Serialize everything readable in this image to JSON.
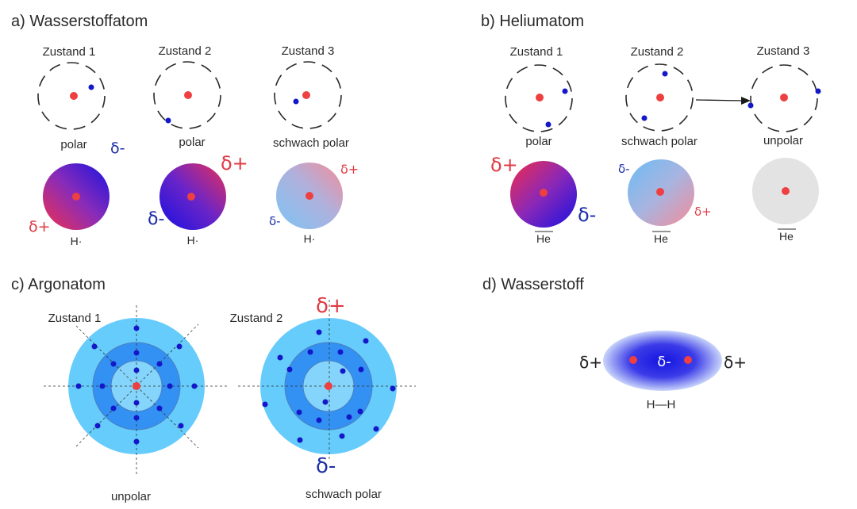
{
  "panels": {
    "a": {
      "title": "a) Wasserstoffatom",
      "states": [
        "Zustand 1",
        "Zustand 2",
        "Zustand 3"
      ],
      "captions": [
        "polar",
        "polar",
        "schwach polar"
      ],
      "symbol": "H·",
      "charges": [
        "δ-",
        "δ+",
        "δ+",
        "δ-",
        "δ+",
        "δ-"
      ]
    },
    "b": {
      "title": "b) Heliumatom",
      "states": [
        "Zustand 1",
        "Zustand 2",
        "Zustand 3"
      ],
      "captions": [
        "polar",
        "schwach polar",
        "unpolar"
      ],
      "symbol": "He",
      "charges": [
        "δ+",
        "δ-",
        "δ-",
        "δ+"
      ]
    },
    "c": {
      "title": "c) Argonatom",
      "states": [
        "Zustand 1",
        "Zustand 2"
      ],
      "captions": [
        "unpolar",
        "schwach polar"
      ],
      "charges": [
        "δ+",
        "δ-"
      ]
    },
    "d": {
      "title": "d) Wasserstoff",
      "charges": [
        "δ+",
        "δ-",
        "δ+"
      ],
      "molecule": "H—H"
    }
  },
  "colors": {
    "nucleus": "#ee4040",
    "electron": "#1418c8",
    "positive": "#e03a45",
    "negative": "#1c2ea8",
    "shell_outer": "#66ccfb",
    "shell_middle": "#3391f3",
    "shell_inner": "#84d4fb",
    "neutral_cloud": "#e3e3e3"
  }
}
